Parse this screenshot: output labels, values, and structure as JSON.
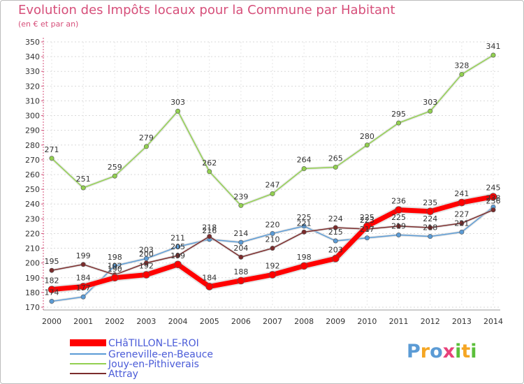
{
  "header": {
    "title": "Evolution des Impôts locaux pour la Commune par Habitant",
    "subtitle": "(en € et par an)"
  },
  "chart_data": {
    "type": "line",
    "title": "Evolution des Impôts locaux pour la Commune par Habitant",
    "subtitle": "(en € et par an)",
    "x": [
      2000,
      2001,
      2002,
      2003,
      2004,
      2005,
      2006,
      2007,
      2008,
      2009,
      2010,
      2011,
      2012,
      2013,
      2014
    ],
    "ylim": [
      170,
      350
    ],
    "yticks": [
      170,
      180,
      190,
      200,
      210,
      220,
      230,
      240,
      250,
      260,
      270,
      280,
      290,
      300,
      310,
      320,
      330,
      340,
      350
    ],
    "grid": true,
    "legend_position": "bottom-left",
    "series": [
      {
        "name": "CHâTILLON-LE-ROI",
        "color": "#ff0000",
        "values": [
          182,
          184,
          190,
          192,
          199,
          184,
          188,
          192,
          198,
          203,
          225,
          236,
          235,
          241,
          245
        ]
      },
      {
        "name": "Greneville-en-Beauce",
        "color": "#5b9bd5",
        "values": [
          174,
          177,
          198,
          203,
          211,
          216,
          214,
          220,
          225,
          215,
          217,
          219,
          218,
          221,
          238
        ]
      },
      {
        "name": "Jouy-en-Pithiverais",
        "color": "#92d050",
        "values": [
          271,
          251,
          259,
          279,
          303,
          262,
          239,
          247,
          264,
          265,
          280,
          295,
          303,
          328,
          341
        ]
      },
      {
        "name": "Attray",
        "color": "#7b2c2c",
        "values": [
          195,
          199,
          192,
          200,
          205,
          218,
          204,
          210,
          221,
          224,
          223,
          225,
          224,
          227,
          236
        ]
      }
    ]
  },
  "legend": {
    "items": [
      {
        "label": "CHâTILLON-LE-ROI"
      },
      {
        "label": "Greneville-en-Beauce"
      },
      {
        "label": "Jouy-en-Pithiverais"
      },
      {
        "label": "Attray"
      }
    ]
  },
  "brand": {
    "letters": [
      {
        "ch": "P",
        "color": "#5b9bd5"
      },
      {
        "ch": "r",
        "color": "#f5a623"
      },
      {
        "ch": "o",
        "color": "#5b9bd5"
      },
      {
        "ch": "x",
        "color": "#e8417a"
      },
      {
        "ch": "i",
        "color": "#5bbf3a"
      },
      {
        "ch": "t",
        "color": "#f5a623"
      },
      {
        "ch": "i",
        "color": "#5bbf3a"
      }
    ]
  }
}
